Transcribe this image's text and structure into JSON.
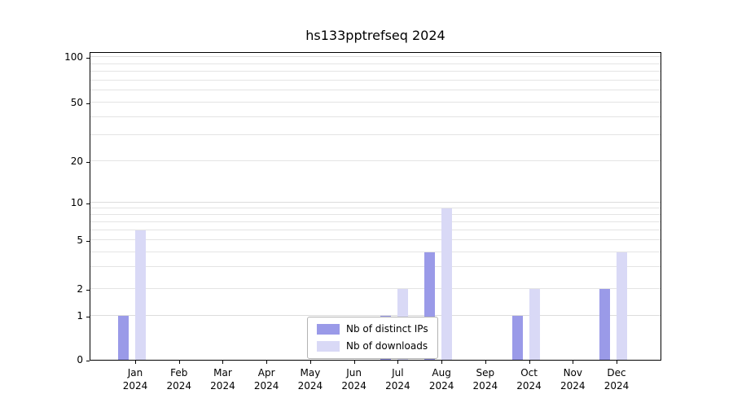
{
  "chart_data": {
    "type": "bar",
    "title": "hs133pptrefseq 2024",
    "yscale": "symlog",
    "grid": true,
    "legend_position": "bottom-center",
    "ylim": [
      0,
      110
    ],
    "y_ticks": [
      0,
      1,
      2,
      5,
      10,
      20,
      50,
      100
    ],
    "gridline_values": [
      1,
      2,
      3,
      4,
      5,
      6,
      7,
      8,
      9,
      10,
      20,
      30,
      40,
      50,
      60,
      70,
      80,
      90,
      100
    ],
    "categories": [
      "Jan",
      "Feb",
      "Mar",
      "Apr",
      "May",
      "Jun",
      "Jul",
      "Aug",
      "Sep",
      "Oct",
      "Nov",
      "Dec"
    ],
    "year": "2024",
    "series": [
      {
        "name": "Nb of distinct IPs",
        "color": "#9a9ae8",
        "values": [
          1,
          0,
          0,
          0,
          0,
          0,
          1,
          4,
          0,
          1,
          0,
          2
        ]
      },
      {
        "name": "Nb of downloads",
        "color": "#d9d9f6",
        "values": [
          6,
          0,
          0,
          0,
          0,
          0,
          2,
          9,
          0,
          2,
          0,
          4
        ]
      }
    ]
  }
}
